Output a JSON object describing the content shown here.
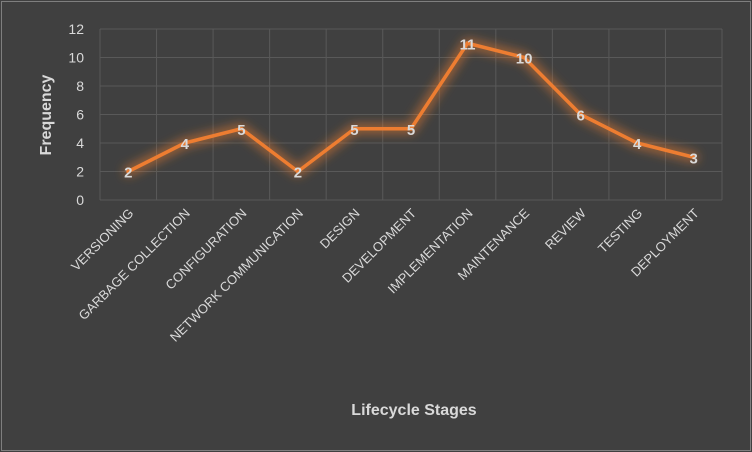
{
  "chart_data": {
    "type": "line",
    "categories": [
      "VERSIONING",
      "GARBAGE COLLECTION",
      "CONFIGURATION",
      "NETWORK COMMUNICATION",
      "DESIGN",
      "DEVELOPMENT",
      "IMPLEMENTATION",
      "MAINTENANCE",
      "REVIEW",
      "TESTING",
      "DEPLOYMENT"
    ],
    "values": [
      2,
      4,
      5,
      2,
      5,
      5,
      11,
      10,
      6,
      4,
      3
    ],
    "xlabel": "Lifecycle  Stages",
    "ylabel": "Frequency",
    "ylim": [
      0,
      12
    ],
    "yticks": [
      0,
      2,
      4,
      6,
      8,
      10,
      12
    ],
    "grid": true,
    "data_labels": true,
    "colors": {
      "line": "#ed7d31",
      "glow": "#ed7d31",
      "background": "#404040",
      "grid": "#595959",
      "text": "#d9d9d9"
    }
  }
}
